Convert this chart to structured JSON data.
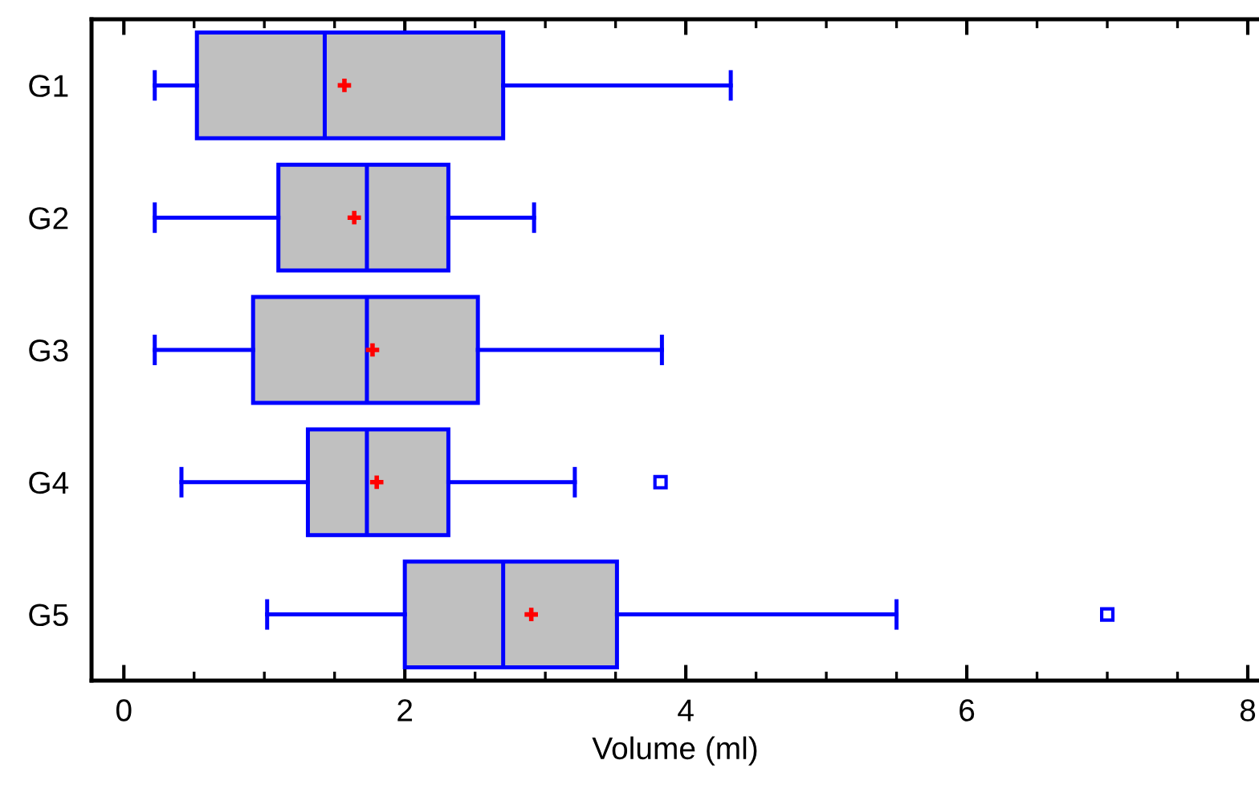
{
  "chart_data": {
    "type": "box",
    "orientation": "horizontal",
    "xlabel": "Volume (ml)",
    "categories": [
      "G1",
      "G2",
      "G3",
      "G4",
      "G5"
    ],
    "boxes": [
      {
        "low": 0.22,
        "q1": 0.52,
        "median": 1.43,
        "q3": 2.7,
        "high": 4.32,
        "mean": 1.57
      },
      {
        "low": 0.22,
        "q1": 1.1,
        "median": 1.73,
        "q3": 2.31,
        "high": 2.92,
        "mean": 1.64
      },
      {
        "low": 0.22,
        "q1": 0.92,
        "median": 1.73,
        "q3": 2.52,
        "high": 3.83,
        "mean": 1.77
      },
      {
        "low": 0.41,
        "q1": 1.31,
        "median": 1.73,
        "q3": 2.31,
        "high": 3.21,
        "mean": 1.8,
        "outliers": [
          3.82
        ]
      },
      {
        "low": 1.02,
        "q1": 2.0,
        "median": 2.7,
        "q3": 3.51,
        "high": 5.5,
        "mean": 2.9,
        "outliers": [
          7.0
        ]
      }
    ],
    "color": "#c0c0c0",
    "xlim": [
      -0.23,
      8.08
    ],
    "xticks": [
      0,
      {
        "value": 0.5,
        "label": null
      },
      {
        "value": 1,
        "label": null
      },
      {
        "value": 1.5,
        "label": null
      },
      2,
      {
        "value": 2.5,
        "label": null
      },
      {
        "value": 3,
        "label": null
      },
      {
        "value": 3.5,
        "label": null
      },
      4,
      {
        "value": 4.5,
        "label": null
      },
      {
        "value": 5,
        "label": null
      },
      {
        "value": 5.5,
        "label": null
      },
      6,
      {
        "value": 6.5,
        "label": null
      },
      {
        "value": 7,
        "label": null
      },
      {
        "value": 7.5,
        "label": null
      },
      8
    ],
    "grid": false,
    "legend": false
  }
}
